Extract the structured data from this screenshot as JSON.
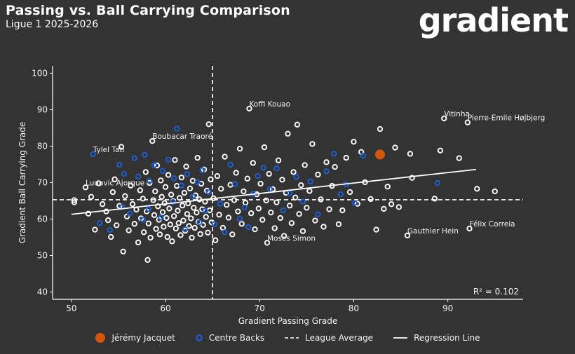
{
  "header": {
    "title": "Passing vs. Ball Carrying Comparison",
    "subtitle": "Ligue 1 2025-2026",
    "brand": "gradient"
  },
  "colors": {
    "background": "#333333",
    "other": "#ffffff",
    "centre_back": "#1f5fd6",
    "highlight": "#d4560c",
    "lines": "#ffffff"
  },
  "legend": {
    "highlight": "Jérémy Jacquet",
    "centre_backs": "Centre Backs",
    "average": "League Average",
    "regression": "Regression Line"
  },
  "chart_data": {
    "type": "scatter",
    "title": "Passing vs. Ball Carrying Comparison",
    "xlabel": "Gradient Passing Grade",
    "ylabel": "Gradient Ball Carrying Grade",
    "xlim": [
      48,
      98
    ],
    "ylim": [
      38,
      102
    ],
    "xticks": [
      50,
      60,
      70,
      80,
      90
    ],
    "yticks": [
      40,
      50,
      60,
      70,
      80,
      90,
      100
    ],
    "league_average": {
      "x": 65,
      "y": 65.3
    },
    "regression": {
      "x": [
        50,
        93
      ],
      "y": [
        61.3,
        73.6
      ]
    },
    "r2_label": "R² = 0.102",
    "highlight": {
      "name": "Jérémy Jacquet",
      "x": 82.8,
      "y": 77.7
    },
    "labels": [
      {
        "name": "Koffi Kouao",
        "x": 68.9,
        "y": 90.3
      },
      {
        "name": "Vitinha",
        "x": 89.6,
        "y": 87.6
      },
      {
        "name": "Pierre-Emile Højbjerg",
        "x": 92.1,
        "y": 86.5
      },
      {
        "name": "Boubacar Traoré",
        "x": 58.6,
        "y": 81.4
      },
      {
        "name": "Tylel Tati",
        "x": 52.3,
        "y": 77.8
      },
      {
        "name": "Ludovic Ajorque",
        "x": 51.5,
        "y": 68.7
      },
      {
        "name": "Félix Correia",
        "x": 92.3,
        "y": 57.4
      },
      {
        "name": "Gauthier Hein",
        "x": 85.7,
        "y": 55.5
      },
      {
        "name": "Moses Simon",
        "x": 70.8,
        "y": 53.5
      }
    ],
    "centre_backs": [
      [
        52.3,
        77.8
      ],
      [
        55.1,
        74.9
      ],
      [
        55.6,
        72.4
      ],
      [
        56.7,
        76.7
      ],
      [
        57.1,
        71.7
      ],
      [
        57.8,
        77.6
      ],
      [
        58.3,
        70.4
      ],
      [
        58.8,
        74.8
      ],
      [
        59.7,
        73.2
      ],
      [
        60.3,
        76.3
      ],
      [
        60.9,
        71.2
      ],
      [
        61.2,
        84.8
      ],
      [
        61.7,
        69.2
      ],
      [
        62.3,
        72.3
      ],
      [
        62.9,
        66.2
      ],
      [
        63.4,
        70.1
      ],
      [
        63.9,
        73.4
      ],
      [
        64.2,
        62.3
      ],
      [
        64.6,
        67.4
      ],
      [
        65.2,
        58.6
      ],
      [
        65.8,
        64.2
      ],
      [
        66.3,
        56.4
      ],
      [
        66.9,
        74.9
      ],
      [
        67.4,
        69.6
      ],
      [
        67.9,
        60.1
      ],
      [
        68.4,
        63.2
      ],
      [
        68.8,
        57.8
      ],
      [
        69.3,
        66.9
      ],
      [
        69.8,
        71.8
      ],
      [
        70.4,
        74.1
      ],
      [
        71.1,
        68.2
      ],
      [
        71.8,
        73.9
      ],
      [
        72.5,
        62.4
      ],
      [
        73.2,
        67.1
      ],
      [
        73.9,
        71.6
      ],
      [
        74.6,
        64.8
      ],
      [
        75.4,
        70.3
      ],
      [
        76.2,
        61.3
      ],
      [
        77.1,
        73.1
      ],
      [
        77.9,
        77.9
      ],
      [
        78.6,
        66.8
      ],
      [
        79.2,
        69.5
      ],
      [
        80.1,
        64.4
      ],
      [
        81.0,
        77.4
      ],
      [
        88.9,
        69.9
      ],
      [
        53.0,
        58.9
      ],
      [
        54.1,
        57.0
      ],
      [
        55.4,
        63.3
      ],
      [
        56.2,
        61.5
      ],
      [
        57.6,
        59.8
      ],
      [
        58.2,
        62.8
      ],
      [
        59.5,
        60.4
      ],
      [
        60.8,
        64.7
      ],
      [
        62.1,
        57.2
      ],
      [
        63.6,
        59.1
      ]
    ],
    "others": [
      [
        50.3,
        64.6
      ],
      [
        50.3,
        65.2
      ],
      [
        51.5,
        68.7
      ],
      [
        51.8,
        61.5
      ],
      [
        52.1,
        66.1
      ],
      [
        52.5,
        57.1
      ],
      [
        52.9,
        69.8
      ],
      [
        53.3,
        64.1
      ],
      [
        53.7,
        62.1
      ],
      [
        53.9,
        59.7
      ],
      [
        54.2,
        55.1
      ],
      [
        54.4,
        67.4
      ],
      [
        54.6,
        70.9
      ],
      [
        54.8,
        58.3
      ],
      [
        55.1,
        63.6
      ],
      [
        55.3,
        79.8
      ],
      [
        55.5,
        51.1
      ],
      [
        55.7,
        66.3
      ],
      [
        55.9,
        60.7
      ],
      [
        56.1,
        56.9
      ],
      [
        56.3,
        69.2
      ],
      [
        56.5,
        64.1
      ],
      [
        56.7,
        58.7
      ],
      [
        56.9,
        62.6
      ],
      [
        57.1,
        53.6
      ],
      [
        57.3,
        67.9
      ],
      [
        57.4,
        60.2
      ],
      [
        57.6,
        65.6
      ],
      [
        57.7,
        56.4
      ],
      [
        57.9,
        72.9
      ],
      [
        58.0,
        62.1
      ],
      [
        58.1,
        48.8
      ],
      [
        58.2,
        58.8
      ],
      [
        58.3,
        69.9
      ],
      [
        58.4,
        54.9
      ],
      [
        58.6,
        81.4
      ],
      [
        58.7,
        65.2
      ],
      [
        58.8,
        61.1
      ],
      [
        58.9,
        67.6
      ],
      [
        59.0,
        57.3
      ],
      [
        59.1,
        74.7
      ],
      [
        59.2,
        63.5
      ],
      [
        59.3,
        59.8
      ],
      [
        59.4,
        55.8
      ],
      [
        59.5,
        70.6
      ],
      [
        59.6,
        66.1
      ],
      [
        59.7,
        61.9
      ],
      [
        59.8,
        57.9
      ],
      [
        59.9,
        64.4
      ],
      [
        60.0,
        68.8
      ],
      [
        60.1,
        60.3
      ],
      [
        60.2,
        55.1
      ],
      [
        60.3,
        72.1
      ],
      [
        60.4,
        62.9
      ],
      [
        60.5,
        58.5
      ],
      [
        60.6,
        66.7
      ],
      [
        60.7,
        53.9
      ],
      [
        60.8,
        64.9
      ],
      [
        60.9,
        60.8
      ],
      [
        61.0,
        76.2
      ],
      [
        61.1,
        57.4
      ],
      [
        61.2,
        69.1
      ],
      [
        61.3,
        62.3
      ],
      [
        61.4,
        58.9
      ],
      [
        61.5,
        65.8
      ],
      [
        61.6,
        55.6
      ],
      [
        61.7,
        71.4
      ],
      [
        61.8,
        63.7
      ],
      [
        61.9,
        59.6
      ],
      [
        62.0,
        67.2
      ],
      [
        62.1,
        56.8
      ],
      [
        62.2,
        74.4
      ],
      [
        62.3,
        61.4
      ],
      [
        62.4,
        64.3
      ],
      [
        62.5,
        58.1
      ],
      [
        62.6,
        68.4
      ],
      [
        62.7,
        60.2
      ],
      [
        62.8,
        54.9
      ],
      [
        62.9,
        70.5
      ],
      [
        63.0,
        63.1
      ],
      [
        63.1,
        57.6
      ],
      [
        63.2,
        66.5
      ],
      [
        63.3,
        61.8
      ],
      [
        63.4,
        76.8
      ],
      [
        63.5,
        59.2
      ],
      [
        63.6,
        65.4
      ],
      [
        63.7,
        55.9
      ],
      [
        63.8,
        69.7
      ],
      [
        63.9,
        62.7
      ],
      [
        64.0,
        58.4
      ],
      [
        64.1,
        73.6
      ],
      [
        64.2,
        64.8
      ],
      [
        64.3,
        60.6
      ],
      [
        64.4,
        67.8
      ],
      [
        64.5,
        56.3
      ],
      [
        64.6,
        86.0
      ],
      [
        64.7,
        62.4
      ],
      [
        64.8,
        70.9
      ],
      [
        64.9,
        59.1
      ],
      [
        65.1,
        65.7
      ],
      [
        65.3,
        54.2
      ],
      [
        65.5,
        71.8
      ],
      [
        65.7,
        61.2
      ],
      [
        65.9,
        68.3
      ],
      [
        66.1,
        57.6
      ],
      [
        66.3,
        77.1
      ],
      [
        66.5,
        63.9
      ],
      [
        66.7,
        60.4
      ],
      [
        66.9,
        69.4
      ],
      [
        67.1,
        55.8
      ],
      [
        67.3,
        65.2
      ],
      [
        67.5,
        72.7
      ],
      [
        67.7,
        62.1
      ],
      [
        67.9,
        79.3
      ],
      [
        68.1,
        58.7
      ],
      [
        68.3,
        67.6
      ],
      [
        68.5,
        64.5
      ],
      [
        68.7,
        71.1
      ],
      [
        68.9,
        90.3
      ],
      [
        69.1,
        61.6
      ],
      [
        69.3,
        75.4
      ],
      [
        69.5,
        57.2
      ],
      [
        69.7,
        66.8
      ],
      [
        69.9,
        62.9
      ],
      [
        70.1,
        69.7
      ],
      [
        70.3,
        59.8
      ],
      [
        70.5,
        79.7
      ],
      [
        70.7,
        65.1
      ],
      [
        70.8,
        53.5
      ],
      [
        71.0,
        72.4
      ],
      [
        71.2,
        61.8
      ],
      [
        71.4,
        68.2
      ],
      [
        71.6,
        57.5
      ],
      [
        71.8,
        64.6
      ],
      [
        72.0,
        76.1
      ],
      [
        72.2,
        60.3
      ],
      [
        72.4,
        70.8
      ],
      [
        72.6,
        55.4
      ],
      [
        72.8,
        67.2
      ],
      [
        73.0,
        83.4
      ],
      [
        73.2,
        63.7
      ],
      [
        73.4,
        58.9
      ],
      [
        73.6,
        72.9
      ],
      [
        73.8,
        65.9
      ],
      [
        74.0,
        85.9
      ],
      [
        74.2,
        61.4
      ],
      [
        74.4,
        69.3
      ],
      [
        74.6,
        56.7
      ],
      [
        74.8,
        74.8
      ],
      [
        75.0,
        63.1
      ],
      [
        75.3,
        67.7
      ],
      [
        75.6,
        80.6
      ],
      [
        75.9,
        59.6
      ],
      [
        76.2,
        72.2
      ],
      [
        76.5,
        65.4
      ],
      [
        76.8,
        57.9
      ],
      [
        77.1,
        75.6
      ],
      [
        77.4,
        62.7
      ],
      [
        77.7,
        69.1
      ],
      [
        78.0,
        74.3
      ],
      [
        78.4,
        58.6
      ],
      [
        78.8,
        62.4
      ],
      [
        79.2,
        76.8
      ],
      [
        79.6,
        67.4
      ],
      [
        80.0,
        81.2
      ],
      [
        80.4,
        64.2
      ],
      [
        80.8,
        78.4
      ],
      [
        81.2,
        70.1
      ],
      [
        81.8,
        65.5
      ],
      [
        82.4,
        57.1
      ],
      [
        82.8,
        84.7
      ],
      [
        83.2,
        62.8
      ],
      [
        83.6,
        68.9
      ],
      [
        84.0,
        64.1
      ],
      [
        84.4,
        79.6
      ],
      [
        84.8,
        63.3
      ],
      [
        85.7,
        55.5
      ],
      [
        86.2,
        71.3
      ],
      [
        86.0,
        77.9
      ],
      [
        88.6,
        65.6
      ],
      [
        89.2,
        78.8
      ],
      [
        89.6,
        87.6
      ],
      [
        91.2,
        76.7
      ],
      [
        92.1,
        86.5
      ],
      [
        92.3,
        57.4
      ],
      [
        93.1,
        68.3
      ],
      [
        95.0,
        67.6
      ]
    ]
  }
}
